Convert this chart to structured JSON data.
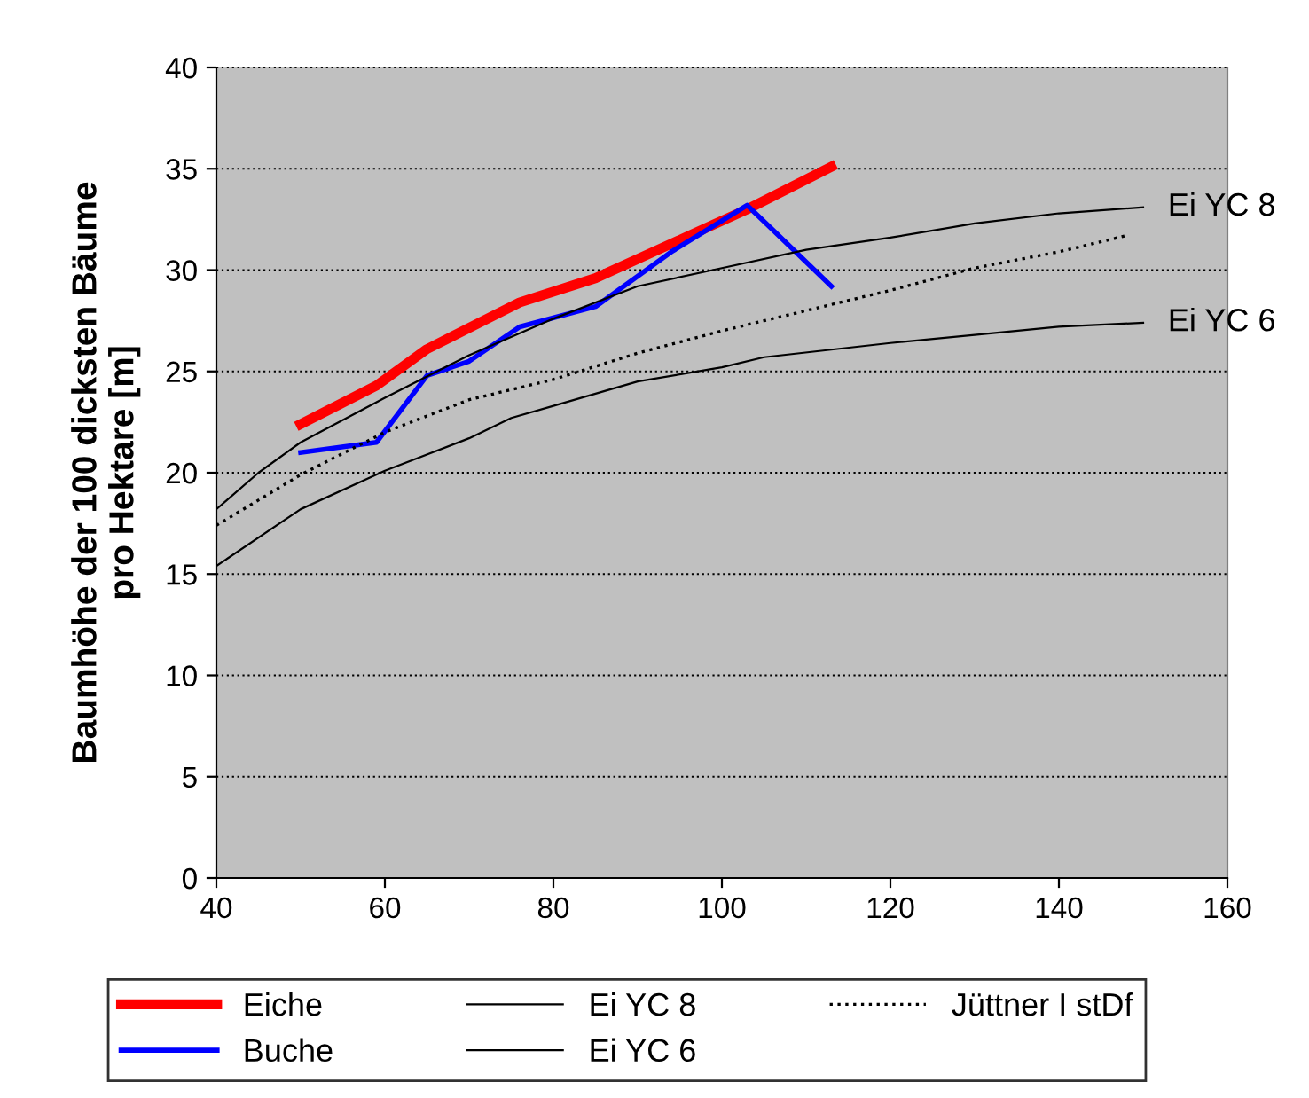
{
  "chart_data": {
    "type": "line",
    "ylabel": "Baumhöhe der 100 dicksten Bäume\npro Hektare [m]",
    "xlim": [
      40,
      160
    ],
    "xticks": [
      40,
      60,
      80,
      100,
      120,
      140,
      160
    ],
    "ylim": [
      0,
      40
    ],
    "yticks": [
      0,
      5,
      10,
      15,
      20,
      25,
      30,
      35,
      40
    ],
    "grid": "y",
    "legend": "bottom",
    "series": [
      {
        "name": "Eiche",
        "color": "#ff0000",
        "line_style": "solid",
        "x": [
          50,
          59,
          65,
          76,
          85,
          94,
          103,
          113
        ],
        "values": [
          22.4,
          24.3,
          26.1,
          28.4,
          29.6,
          31.3,
          33,
          35.1
        ]
      },
      {
        "name": "Buche",
        "color": "#0000ff",
        "line_style": "solid",
        "x": [
          50,
          59,
          65,
          70,
          76,
          85,
          94,
          103,
          113
        ],
        "values": [
          21,
          21.5,
          24.8,
          25.5,
          27.2,
          28.2,
          30.9,
          33.2,
          29.2
        ]
      },
      {
        "name": "Ei YC 8",
        "color": "#000000",
        "line_style": "solid",
        "x": [
          40,
          45,
          50,
          60,
          70,
          80,
          90,
          100,
          110,
          120,
          130,
          140,
          150
        ],
        "values": [
          18.2,
          20,
          21.5,
          23.7,
          25.8,
          27.6,
          29.2,
          30.1,
          31,
          31.6,
          32.3,
          32.8,
          33.1
        ]
      },
      {
        "name": "Ei YC 6",
        "color": "#000000",
        "line_style": "solid",
        "x": [
          40,
          50,
          60,
          70,
          75,
          80,
          90,
          100,
          105,
          120,
          130,
          140,
          150
        ],
        "values": [
          15.4,
          18.2,
          20.1,
          21.7,
          22.7,
          23.3,
          24.5,
          25.2,
          25.7,
          26.4,
          26.8,
          27.2,
          27.4
        ]
      },
      {
        "name": "Jüttner I stDf",
        "color": "#000000",
        "line_style": "dotted",
        "x": [
          40,
          50,
          60,
          70,
          80,
          90,
          100,
          110,
          120,
          130,
          140,
          148
        ],
        "values": [
          17.4,
          19.9,
          22,
          23.6,
          24.6,
          25.9,
          27,
          28,
          29,
          30.1,
          30.9,
          31.7
        ]
      }
    ],
    "annotations": [
      {
        "text": "Ei YC 8",
        "x": 150,
        "y": 33.1
      },
      {
        "text": "Ei YC 6",
        "x": 150,
        "y": 27.4
      }
    ]
  }
}
